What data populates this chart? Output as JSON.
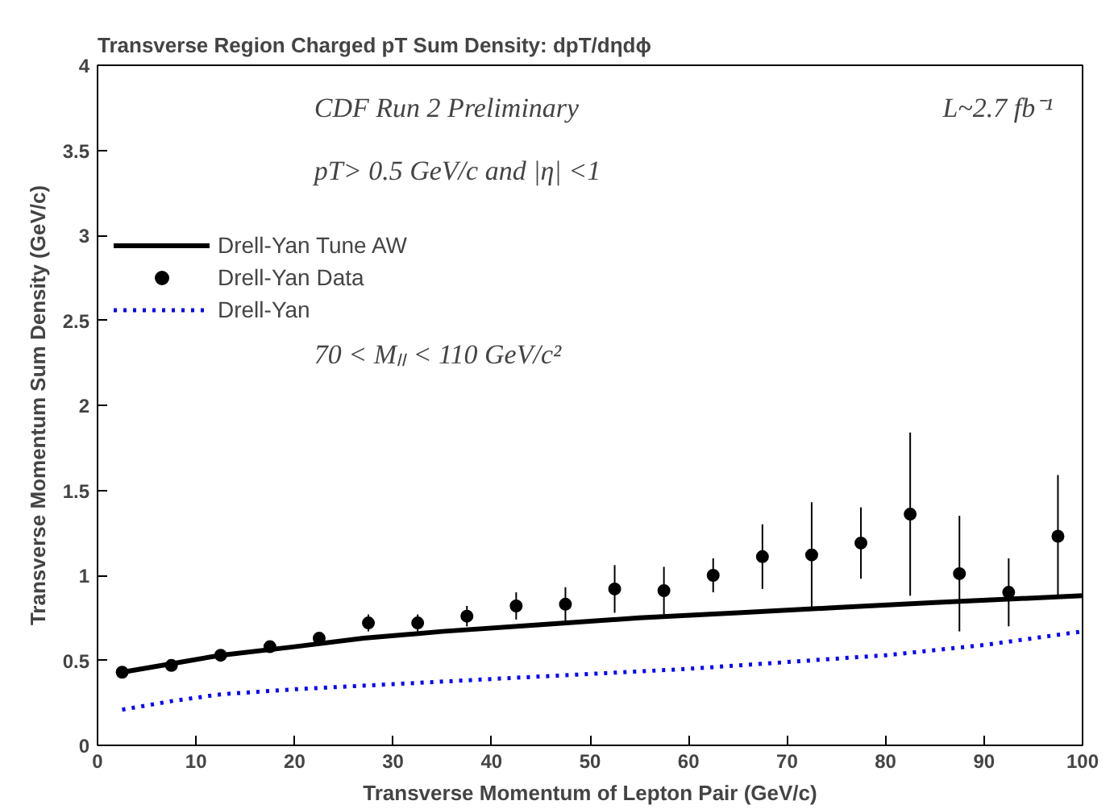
{
  "chart_data": {
    "type": "scatter",
    "title": "Transverse Region Charged pT Sum Density: dpT/dηdϕ",
    "xlabel": "Transverse Momentum of Lepton Pair (GeV/c)",
    "ylabel": "Transverse Momentum Sum Density (GeV/c)",
    "annotations": [
      "CDF Run 2 Preliminary",
      "pT> 0.5  GeV/c and |η| <1",
      "L~2.7 fb⁻¹",
      "70 < Mₗₗ < 110 GeV/c²"
    ],
    "xlim": [
      0,
      100
    ],
    "ylim": [
      0,
      4
    ],
    "xticks": [
      0,
      10,
      20,
      30,
      40,
      50,
      60,
      70,
      80,
      90,
      100
    ],
    "yticks": [
      0,
      0.5,
      1,
      1.5,
      2,
      2.5,
      3,
      3.5,
      4
    ],
    "legend": "top left",
    "grid": false,
    "series": [
      {
        "name": "Drell-Yan Tune AW",
        "type": "line",
        "line_style": "solid",
        "color": "#000000",
        "x": [
          2.5,
          7.5,
          12.5,
          20,
          27,
          35,
          45,
          55,
          65,
          75,
          85,
          100
        ],
        "values": [
          0.43,
          0.48,
          0.53,
          0.58,
          0.63,
          0.67,
          0.71,
          0.75,
          0.78,
          0.81,
          0.84,
          0.88
        ]
      },
      {
        "name": "Drell-Yan Data",
        "marker": "circle",
        "color": "#000000",
        "x": [
          2.5,
          7.5,
          12.5,
          17.5,
          22.5,
          27.5,
          32.5,
          37.5,
          42.5,
          47.5,
          52.5,
          57.5,
          62.5,
          67.5,
          72.5,
          77.5,
          82.5,
          87.5,
          92.5,
          97.5
        ],
        "values": [
          0.43,
          0.47,
          0.53,
          0.58,
          0.63,
          0.72,
          0.72,
          0.76,
          0.82,
          0.83,
          0.92,
          0.91,
          1.0,
          1.11,
          1.12,
          1.19,
          1.36,
          1.01,
          0.9,
          1.23
        ],
        "errors": [
          0.02,
          0.02,
          0.02,
          0.03,
          0.03,
          0.05,
          0.05,
          0.06,
          0.08,
          0.1,
          0.14,
          0.14,
          0.1,
          0.19,
          0.31,
          0.21,
          0.48,
          0.34,
          0.2,
          0.36
        ]
      },
      {
        "name": "Drell-Yan",
        "type": "line",
        "line_style": "dotted",
        "color": "#0000ff",
        "x": [
          2.5,
          7.5,
          12.5,
          20,
          30,
          40,
          50,
          60,
          70,
          80,
          90,
          100
        ],
        "values": [
          0.21,
          0.26,
          0.3,
          0.33,
          0.36,
          0.39,
          0.42,
          0.45,
          0.49,
          0.53,
          0.59,
          0.67
        ]
      }
    ]
  }
}
